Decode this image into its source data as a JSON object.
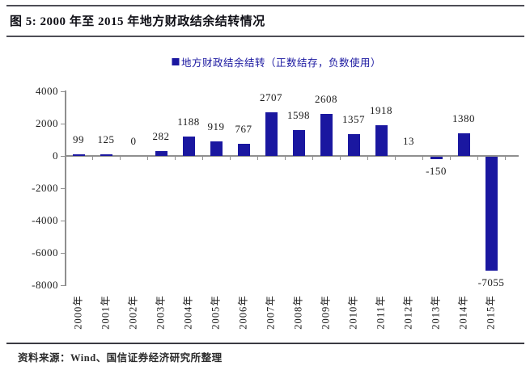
{
  "header": {
    "title": "图 5: 2000 年至 2015 年地方财政结余结转情况"
  },
  "footer": {
    "source": "资料来源：Wind、国信证券经济研究所整理"
  },
  "chart_data": {
    "type": "bar",
    "title": "2000 年至 2015 年地方财政结余结转情况",
    "legend": "地方财政结余结转（正数结存，负数使用）",
    "legend_position": "top-center",
    "categories": [
      "2000年",
      "2001年",
      "2002年",
      "2003年",
      "2004年",
      "2005年",
      "2006年",
      "2007年",
      "2008年",
      "2009年",
      "2010年",
      "2011年",
      "2012年",
      "2013年",
      "2014年",
      "2015年"
    ],
    "values": [
      99,
      125,
      0,
      282,
      1188,
      919,
      767,
      2707,
      1598,
      2608,
      1357,
      1918,
      13,
      -150,
      1380,
      -7055
    ],
    "ylim": [
      -8000,
      4000
    ],
    "ytick_step": 2000,
    "grid": false,
    "bar_color": "#1a17a0",
    "axis_color": "#8f8f8f",
    "label_color": "#1a1a1a"
  }
}
